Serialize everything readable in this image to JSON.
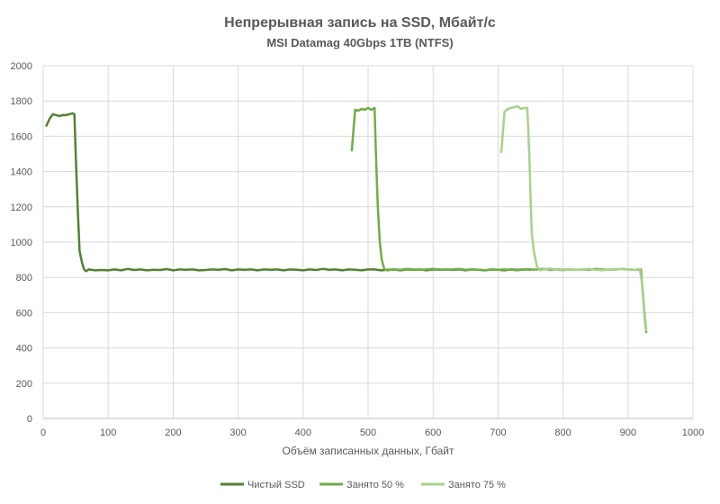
{
  "chart_data": {
    "type": "line",
    "title": "Непрерывная запись на SSD, Мбайт/с",
    "subtitle": "MSI Datamag 40Gbps 1TB (NTFS)",
    "xlabel": "Объём записанных данных, Гбайт",
    "ylabel": "",
    "xlim": [
      0,
      1000
    ],
    "ylim": [
      0,
      2000
    ],
    "xticks": [
      "0",
      "100",
      "200",
      "300",
      "400",
      "500",
      "600",
      "700",
      "800",
      "900",
      "1000"
    ],
    "yticks": [
      "0",
      "200",
      "400",
      "600",
      "800",
      "1000",
      "1200",
      "1400",
      "1600",
      "1800",
      "2000"
    ],
    "grid": "horizontal+vertical",
    "legend_position": "bottom",
    "series": [
      {
        "name": "Чистый SSD",
        "color": "#538135",
        "x": [
          5,
          10,
          15,
          20,
          25,
          30,
          35,
          40,
          45,
          48,
          50,
          53,
          56,
          60,
          63,
          66,
          70,
          80,
          90,
          100,
          110,
          120,
          130,
          140,
          150,
          160,
          170,
          180,
          190,
          200,
          210,
          220,
          230,
          240,
          250,
          260,
          270,
          280,
          290,
          300,
          310,
          320,
          330,
          340,
          350,
          360,
          370,
          380,
          390,
          400,
          410,
          420,
          430,
          440,
          450,
          460,
          470,
          480,
          490,
          500,
          510,
          520,
          530,
          540,
          550,
          560,
          570,
          580,
          590,
          600,
          610,
          620,
          630,
          640,
          650,
          660,
          670,
          680,
          690,
          700,
          710,
          720,
          730,
          740,
          750
        ],
        "y": [
          1660,
          1700,
          1725,
          1720,
          1715,
          1720,
          1720,
          1725,
          1730,
          1725,
          1500,
          1200,
          950,
          880,
          845,
          835,
          845,
          840,
          842,
          840,
          845,
          840,
          848,
          842,
          845,
          840,
          843,
          842,
          847,
          840,
          845,
          843,
          845,
          840,
          842,
          845,
          843,
          847,
          840,
          845,
          843,
          845,
          840,
          845,
          843,
          845,
          840,
          845,
          843,
          840,
          845,
          842,
          848,
          843,
          845,
          840,
          845,
          843,
          840,
          845,
          845,
          840,
          843,
          845,
          840,
          845,
          843,
          845,
          840,
          845,
          843,
          845,
          843,
          845,
          840,
          845,
          843,
          840,
          845,
          843,
          840,
          845,
          843,
          845,
          845
        ]
      },
      {
        "name": "Занято 50 %",
        "color": "#70ad47",
        "x": [
          475,
          480,
          485,
          490,
          495,
          500,
          505,
          510,
          512,
          515,
          518,
          521,
          525,
          530,
          540,
          550,
          560,
          570,
          580,
          590,
          600,
          610,
          620,
          630,
          640,
          650,
          660,
          670,
          680,
          690,
          700,
          710,
          720,
          730,
          740,
          750,
          760,
          770,
          780,
          790,
          800,
          810,
          820,
          830,
          840,
          850,
          860,
          870,
          880,
          890,
          900,
          910,
          920,
          923,
          926,
          928
        ],
        "y": [
          1520,
          1750,
          1745,
          1755,
          1750,
          1760,
          1750,
          1760,
          1500,
          1200,
          1000,
          900,
          845,
          840,
          845,
          843,
          848,
          845,
          843,
          845,
          848,
          845,
          843,
          845,
          848,
          843,
          845,
          843,
          840,
          845,
          843,
          845,
          843,
          840,
          845,
          843,
          845,
          848,
          843,
          845,
          843,
          845,
          843,
          845,
          843,
          848,
          845,
          843,
          845,
          848,
          845,
          843,
          845,
          700,
          560,
          490
        ]
      },
      {
        "name": "Занято 75 %",
        "color": "#a9d18e",
        "x": [
          705,
          710,
          715,
          720,
          725,
          730,
          735,
          740,
          745,
          748,
          750,
          752,
          755,
          760,
          765,
          770,
          780,
          790,
          800,
          810,
          820,
          830,
          840,
          850,
          860,
          870,
          880,
          890,
          900,
          910,
          918,
          922,
          925,
          928
        ],
        "y": [
          1510,
          1740,
          1755,
          1760,
          1765,
          1770,
          1755,
          1760,
          1760,
          1500,
          1250,
          1050,
          950,
          860,
          840,
          845,
          850,
          843,
          840,
          845,
          843,
          845,
          848,
          843,
          840,
          845,
          843,
          848,
          845,
          843,
          848,
          760,
          620,
          500
        ]
      }
    ]
  }
}
